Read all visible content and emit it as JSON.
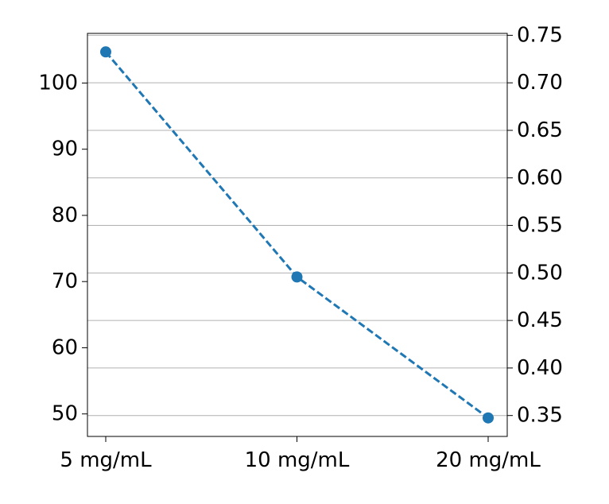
{
  "chart_data": {
    "type": "line",
    "categories": [
      "5 mg/mL",
      "10 mg/mL",
      "20 mg/mL"
    ],
    "series": [
      {
        "values": [
          104.7,
          70.7,
          49.4
        ],
        "axis": "left",
        "color": "#1f77b4",
        "line_style": "dashed",
        "marker": "circle"
      }
    ],
    "y_left": {
      "ticks": [
        50,
        60,
        70,
        80,
        90,
        100
      ],
      "tick_labels": [
        "50",
        "60",
        "70",
        "80",
        "90",
        "100"
      ],
      "ylim": [
        46.6,
        107.5
      ]
    },
    "y_right": {
      "ticks": [
        0.35,
        0.4,
        0.45,
        0.5,
        0.55,
        0.6,
        0.65,
        0.7,
        0.75
      ],
      "tick_labels": [
        "0.35",
        "0.40",
        "0.45",
        "0.50",
        "0.55",
        "0.60",
        "0.65",
        "0.70",
        "0.75"
      ],
      "ylim": [
        0.328,
        0.752
      ]
    },
    "grid": "horizontal-right-axis",
    "title": "",
    "xlabel": "",
    "ylabel": "",
    "legend": "none"
  }
}
